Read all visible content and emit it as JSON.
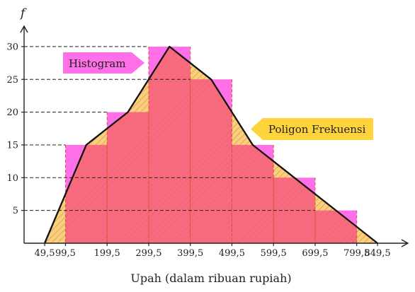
{
  "chart_data": {
    "type": "bar",
    "y_axis_symbol": "f",
    "xlabel": "Upah (dalam ribuan rupiah)",
    "x_ticks": [
      "49,5",
      "99,5",
      "199,5",
      "299,5",
      "399,5",
      "499,5",
      "599,5",
      "699,5",
      "799,5",
      "849,5"
    ],
    "y_ticks": [
      5,
      10,
      15,
      20,
      25,
      30
    ],
    "ylim": [
      0,
      32
    ],
    "grid": false,
    "histogram": {
      "name": "Histogram",
      "class_boundaries": [
        99.5,
        199.5,
        299.5,
        399.5,
        499.5,
        599.5,
        699.5,
        799.5
      ],
      "frequencies": [
        15,
        20,
        30,
        25,
        15,
        10,
        5
      ]
    },
    "polygon": {
      "name": "Poligon Frekuensi",
      "x": [
        49.5,
        149.5,
        249.5,
        349.5,
        449.5,
        549.5,
        649.5,
        749.5,
        849.5
      ],
      "y": [
        0,
        15,
        20,
        30,
        25,
        15,
        10,
        5,
        0
      ]
    },
    "colors": {
      "histogram_fill": "#ff6fe8",
      "polygon_fill": "#f7d27a",
      "overlap_fill": "#f96a82",
      "hatch": "#e0684a",
      "callout_histogram": "#ff6fe8",
      "callout_polygon": "#ffd33c",
      "axis": "#222222"
    }
  }
}
